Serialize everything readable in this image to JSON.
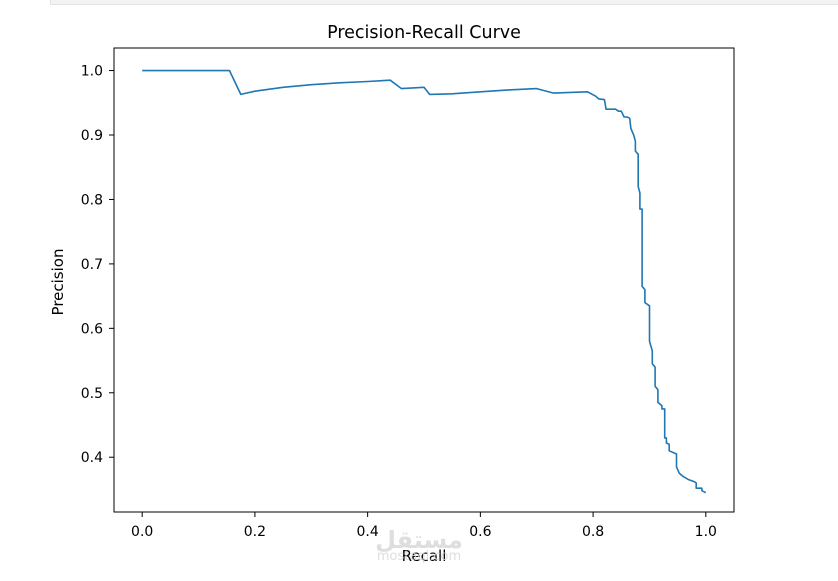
{
  "chart_data": {
    "type": "line",
    "title": "Precision-Recall Curve",
    "xlabel": "Recall",
    "ylabel": "Precision",
    "xlim": [
      -0.05,
      1.05
    ],
    "ylim": [
      0.315,
      1.035
    ],
    "xticks": [
      0.0,
      0.2,
      0.4,
      0.6,
      0.8,
      1.0
    ],
    "xtick_labels": [
      "0.0",
      "0.2",
      "0.4",
      "0.6",
      "0.8",
      "1.0"
    ],
    "yticks": [
      0.4,
      0.5,
      0.6,
      0.7,
      0.8,
      0.9,
      1.0
    ],
    "ytick_labels": [
      "0.4",
      "0.5",
      "0.6",
      "0.7",
      "0.8",
      "0.9",
      "1.0"
    ],
    "grid": false,
    "legend": false,
    "series": [
      {
        "color": "#1f77b4",
        "x": [
          0.0,
          0.155,
          0.175,
          0.2,
          0.25,
          0.3,
          0.35,
          0.4,
          0.44,
          0.46,
          0.5,
          0.51,
          0.55,
          0.6,
          0.65,
          0.7,
          0.73,
          0.79,
          0.805,
          0.81,
          0.82,
          0.823,
          0.84,
          0.845,
          0.85,
          0.855,
          0.86,
          0.865,
          0.867,
          0.872,
          0.875,
          0.875,
          0.88,
          0.88,
          0.883,
          0.883,
          0.887,
          0.887,
          0.892,
          0.892,
          0.9,
          0.9,
          0.905,
          0.905,
          0.91,
          0.91,
          0.915,
          0.915,
          0.922,
          0.922,
          0.927,
          0.927,
          0.93,
          0.93,
          0.935,
          0.935,
          0.948,
          0.948,
          0.953,
          0.96,
          0.97,
          0.98,
          0.983,
          0.983,
          0.993,
          0.993,
          1.0
        ],
        "y": [
          1.0,
          1.0,
          0.963,
          0.968,
          0.974,
          0.978,
          0.981,
          0.983,
          0.985,
          0.972,
          0.974,
          0.963,
          0.964,
          0.967,
          0.97,
          0.972,
          0.965,
          0.967,
          0.96,
          0.956,
          0.955,
          0.94,
          0.94,
          0.937,
          0.937,
          0.928,
          0.928,
          0.926,
          0.91,
          0.9,
          0.89,
          0.875,
          0.87,
          0.82,
          0.81,
          0.785,
          0.785,
          0.665,
          0.66,
          0.64,
          0.635,
          0.58,
          0.565,
          0.545,
          0.54,
          0.51,
          0.505,
          0.485,
          0.48,
          0.475,
          0.475,
          0.43,
          0.43,
          0.422,
          0.42,
          0.41,
          0.405,
          0.385,
          0.375,
          0.37,
          0.365,
          0.362,
          0.36,
          0.352,
          0.352,
          0.348,
          0.345
        ]
      }
    ]
  },
  "watermark": {
    "arabic": "مستقل",
    "latin": "mostaql.com"
  }
}
